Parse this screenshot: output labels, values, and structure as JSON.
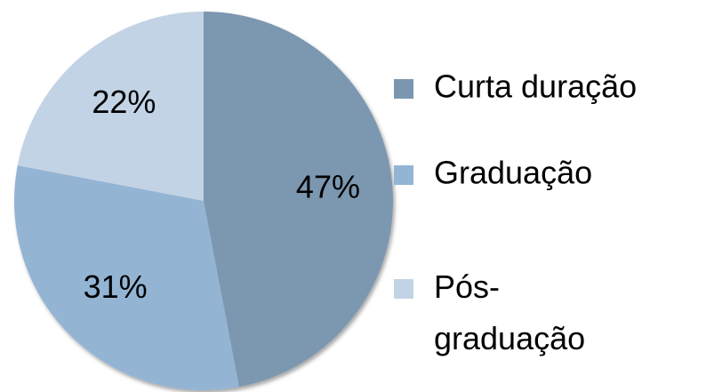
{
  "chart_data": {
    "type": "pie",
    "categories": [
      "Curta duração",
      "Graduação",
      "Pós-graduação"
    ],
    "values": [
      47,
      31,
      22
    ],
    "value_labels": [
      "47%",
      "31%",
      "22%"
    ],
    "colors": [
      "#7b97b0",
      "#94b4d4",
      "#c3d3e6"
    ],
    "legend": "right"
  }
}
